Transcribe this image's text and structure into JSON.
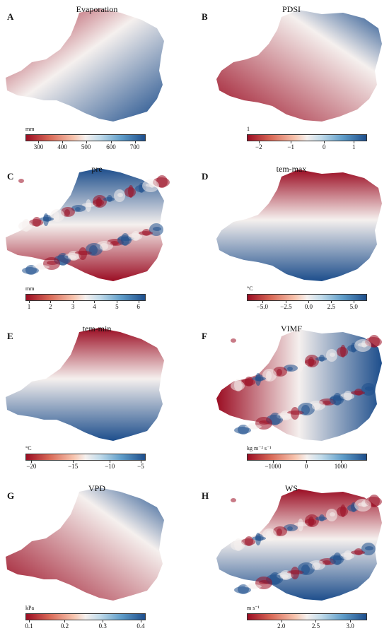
{
  "colors": {
    "red": "#9b0d23",
    "blue": "#1d4e8c",
    "mid": "#f5f0ee"
  },
  "panels": [
    {
      "label": "A",
      "title": "Evaporation",
      "unit": "mm",
      "ticks": [
        "300",
        "400",
        "500",
        "600",
        "700"
      ]
    },
    {
      "label": "B",
      "title": "PDSI",
      "unit": "1",
      "ticks": [
        "−2",
        "−1",
        "0",
        "1"
      ]
    },
    {
      "label": "C",
      "title": "pre",
      "unit": "mm",
      "ticks": [
        "1",
        "2",
        "3",
        "4",
        "5",
        "6"
      ]
    },
    {
      "label": "D",
      "title": "tem-max",
      "unit": "°C",
      "ticks": [
        "−5.0",
        "−2.5",
        "0.0",
        "2.5",
        "5.0"
      ]
    },
    {
      "label": "E",
      "title": "tem-min",
      "unit": "°C",
      "ticks": [
        "−20",
        "−15",
        "−10",
        "−5"
      ]
    },
    {
      "label": "F",
      "title": "VIMF",
      "unit": "kg m⁻² s⁻¹",
      "ticks": [
        "−1000",
        "0",
        "1000"
      ]
    },
    {
      "label": "G",
      "title": "VPD",
      "unit": "kPa",
      "ticks": [
        "0.1",
        "0.2",
        "0.3",
        "0.4"
      ]
    },
    {
      "label": "H",
      "title": "WS",
      "unit": "m s⁻¹",
      "ticks": [
        "2.0",
        "2.5",
        "3.0"
      ]
    }
  ]
}
